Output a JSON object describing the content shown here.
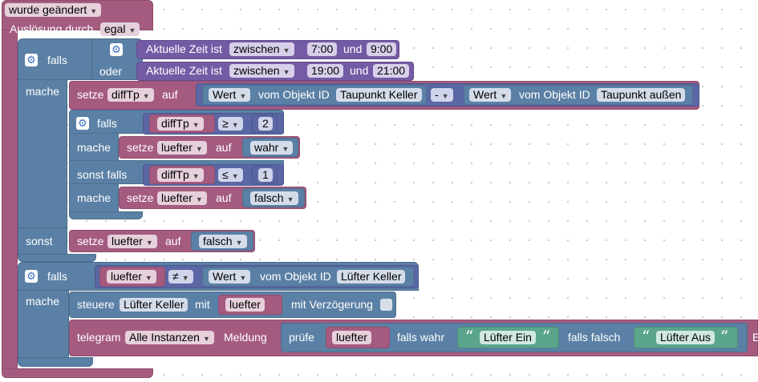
{
  "trigger": {
    "changed_label": "wurde geändert",
    "trigger_label": "Auslösung durch",
    "trigger_value": "egal"
  },
  "if1": {
    "falls": "falls",
    "oder": "oder",
    "mache": "mache",
    "sonst": "sonst",
    "time1": {
      "label": "Aktuelle Zeit ist",
      "op": "zwischen",
      "from": "7:00",
      "und": "und",
      "to": "9:00"
    },
    "time2": {
      "label": "Aktuelle Zeit ist",
      "op": "zwischen",
      "from": "19:00",
      "und": "und",
      "to": "21:00"
    },
    "set_difftp": {
      "setze": "setze",
      "var": "diffTp",
      "auf": "auf",
      "wert": "Wert",
      "vom_objekt": "vom Objekt ID",
      "obj1": "Taupunkt Keller",
      "minus": "-",
      "obj2": "Taupunkt außen"
    },
    "inner": {
      "falls": "falls",
      "mache": "mache",
      "sonst_falls": "sonst falls",
      "cond1": {
        "var": "diffTp",
        "op": "≥",
        "num": "2"
      },
      "set1": {
        "setze": "setze",
        "var": "luefter",
        "auf": "auf",
        "value": "wahr"
      },
      "cond2": {
        "var": "diffTp",
        "op": "≤",
        "num": "1"
      },
      "set2": {
        "setze": "setze",
        "var": "luefter",
        "auf": "auf",
        "value": "falsch"
      }
    },
    "else_set": {
      "setze": "setze",
      "var": "luefter",
      "auf": "auf",
      "value": "falsch"
    }
  },
  "if2": {
    "falls": "falls",
    "mache": "mache",
    "cond": {
      "var": "luefter",
      "op": "≠",
      "wert": "Wert",
      "vom_objekt": "vom Objekt ID",
      "obj": "Lüfter Keller"
    },
    "control": {
      "steuere": "steuere",
      "obj": "Lüfter Keller",
      "mit": "mit",
      "var": "luefter",
      "delay": "mit Verzögerung"
    },
    "telegram": {
      "label": "telegram",
      "instance": "Alle Instanzen",
      "meldung": "Meldung",
      "pruefe": "prüfe",
      "var": "luefter",
      "if_true": "falls wahr",
      "true_text": "Lüfter Ein",
      "if_false": "falls falsch",
      "false_text": "Lüfter Aus",
      "overflow": "E"
    }
  },
  "colors": {
    "pink": "#a55b80",
    "blue": "#5b80a5",
    "purple": "#745ba5",
    "green": "#5ba58c",
    "indigo": "#5b67a5"
  }
}
